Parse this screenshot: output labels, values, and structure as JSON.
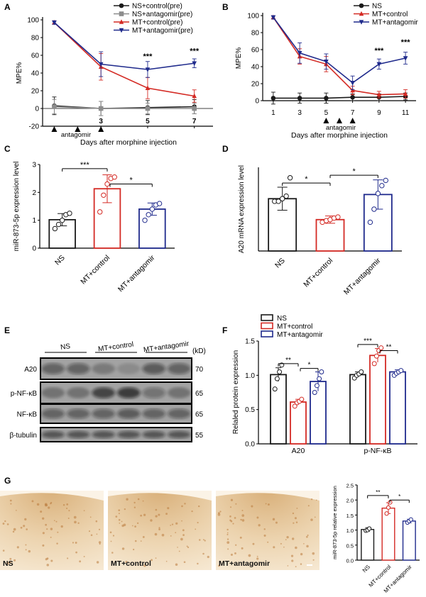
{
  "figure": {
    "panel_labels": [
      "A",
      "B",
      "C",
      "D",
      "E",
      "F",
      "G"
    ],
    "colors": {
      "black": "#1a1a1a",
      "gray": "#8c8c8c",
      "red": "#d42a24",
      "blue": "#1f2a8c",
      "blot_bg": "#a8a8a8",
      "tissue": "#e8c79a"
    }
  },
  "chart_data": [
    {
      "id": "A",
      "type": "line",
      "ylabel": "MPE%",
      "xlabel": "Days after morphine injection",
      "x": [
        1,
        3,
        5,
        7
      ],
      "xticks": [
        3,
        5,
        7
      ],
      "yticks": [
        -20,
        0,
        20,
        40,
        60,
        80,
        100
      ],
      "ylim": [
        -20,
        100
      ],
      "series": [
        {
          "name": "NS+control(pre)",
          "color": "#1a1a1a",
          "marker": "circle",
          "values": [
            3,
            0,
            1,
            2
          ],
          "err": [
            10,
            8,
            8,
            8
          ]
        },
        {
          "name": "NS+antagomir(pre)",
          "color": "#8c8c8c",
          "marker": "square",
          "values": [
            2,
            0,
            0,
            0
          ],
          "err": [
            8,
            8,
            6,
            6
          ]
        },
        {
          "name": "MT+control(pre)",
          "color": "#d42a24",
          "marker": "triangle",
          "values": [
            97,
            47,
            23,
            14
          ],
          "err": [
            2,
            15,
            12,
            7
          ]
        },
        {
          "name": "MT+antagomir(pre)",
          "color": "#1f2a8c",
          "marker": "triangle-down",
          "values": [
            97,
            50,
            44,
            51
          ],
          "err": [
            2,
            14,
            9,
            5
          ]
        }
      ],
      "annotations": [
        "***",
        "***"
      ],
      "arrow_label": "antagomir"
    },
    {
      "id": "B",
      "type": "line",
      "ylabel": "MPE%",
      "xlabel": "Days after morphine injection",
      "x": [
        1,
        3,
        5,
        7,
        9,
        11
      ],
      "xticks": [
        1,
        3,
        5,
        7,
        9,
        11
      ],
      "yticks": [
        0,
        20,
        40,
        60,
        80,
        100
      ],
      "ylim": [
        0,
        100
      ],
      "series": [
        {
          "name": "NS",
          "color": "#1a1a1a",
          "marker": "circle",
          "values": [
            3,
            3,
            3,
            4,
            4,
            5
          ],
          "err": [
            7,
            6,
            6,
            4,
            4,
            4
          ]
        },
        {
          "name": "MT+control",
          "color": "#d42a24",
          "marker": "triangle",
          "values": [
            98,
            52,
            43,
            12,
            7,
            8
          ],
          "err": [
            2,
            9,
            9,
            5,
            4,
            5
          ]
        },
        {
          "name": "MT+antagomir",
          "color": "#1f2a8c",
          "marker": "triangle-down",
          "values": [
            98,
            56,
            46,
            21,
            43,
            50
          ],
          "err": [
            2,
            12,
            9,
            8,
            6,
            7
          ]
        }
      ],
      "annotations": [
        "***",
        "***"
      ],
      "arrow_label": "antagomir"
    },
    {
      "id": "C",
      "type": "bar",
      "ylabel": "miR-873-5p expression level",
      "categories": [
        "NS",
        "MT+control",
        "MT+antagomir"
      ],
      "values": [
        1.02,
        2.13,
        1.4
      ],
      "err": [
        0.22,
        0.5,
        0.22
      ],
      "colors": [
        "#1a1a1a",
        "#d42a24",
        "#1f2a8c"
      ],
      "yticks": [
        0,
        1,
        2,
        3
      ],
      "ylim": [
        0,
        3
      ],
      "points": [
        [
          0.7,
          0.85,
          1.0,
          1.2,
          1.25
        ],
        [
          1.3,
          1.9,
          2.3,
          2.5,
          2.55
        ],
        [
          1.0,
          1.2,
          1.4,
          1.55,
          1.6
        ]
      ],
      "sig": [
        "***",
        "*"
      ]
    },
    {
      "id": "D",
      "type": "bar",
      "ylabel": "A20 mRNA expression level",
      "categories": [
        "NS",
        "MT+control",
        "MT+antagomir"
      ],
      "values": [
        1.0,
        0.6,
        1.08
      ],
      "err": [
        0.22,
        0.07,
        0.28
      ],
      "colors": [
        "#1a1a1a",
        "#d42a24",
        "#1f2a8c"
      ],
      "yticks": [],
      "ylim": [
        0,
        1.6
      ],
      "points": [
        [
          0.95,
          0.95,
          1.0,
          1.05,
          1.4
        ],
        [
          0.55,
          0.58,
          0.6,
          0.63,
          0.65
        ],
        [
          0.55,
          0.8,
          1.1,
          1.25,
          1.35
        ]
      ],
      "sig": [
        "*",
        "*"
      ]
    },
    {
      "id": "F",
      "type": "bar",
      "ylabel": "Relaled protein expression",
      "groups": [
        "A20",
        "p-NF-κB"
      ],
      "legend": [
        "NS",
        "MT+control",
        "MT+antagomir"
      ],
      "colors": [
        "#1a1a1a",
        "#d42a24",
        "#1f2a8c"
      ],
      "values": [
        [
          1.01,
          0.61,
          0.91
        ],
        [
          1.01,
          1.29,
          1.05
        ]
      ],
      "err": [
        [
          0.1,
          0.04,
          0.14
        ],
        [
          0.04,
          0.1,
          0.03
        ]
      ],
      "yticks": [
        0.0,
        0.5,
        1.0,
        1.5
      ],
      "ylim": [
        0,
        1.5
      ],
      "points": [
        [
          [
            0.8,
            0.95,
            1.05,
            1.15
          ],
          [
            0.55,
            0.6,
            0.62,
            0.65
          ],
          [
            0.75,
            0.85,
            0.95,
            1.05
          ]
        ],
        [
          [
            0.96,
            1.0,
            1.02,
            1.05
          ],
          [
            1.17,
            1.28,
            1.36,
            1.4
          ],
          [
            1.0,
            1.03,
            1.05,
            1.07
          ]
        ]
      ],
      "sig": [
        "**",
        "*",
        "***",
        "**"
      ]
    },
    {
      "id": "G",
      "type": "bar",
      "ylabel": "miR-873-5p relative expression",
      "categories": [
        "NS",
        "MT+control",
        "MT+antagomir"
      ],
      "values": [
        1.02,
        1.73,
        1.3
      ],
      "err": [
        0.06,
        0.18,
        0.06
      ],
      "colors": [
        "#1a1a1a",
        "#d42a24",
        "#1f2a8c"
      ],
      "yticks": [
        0.0,
        0.5,
        1.0,
        1.5,
        2.0,
        2.5
      ],
      "ylim": [
        0,
        2.5
      ],
      "points": [
        [
          0.98,
          1.0,
          1.05
        ],
        [
          1.55,
          1.75,
          1.92
        ],
        [
          1.25,
          1.3,
          1.35
        ]
      ],
      "sig": [
        "**",
        "*"
      ]
    }
  ],
  "blot": {
    "groups": [
      "NS",
      "MT+control",
      "MT+antagomir"
    ],
    "unit": "(kD)",
    "rows": [
      {
        "label": "A20",
        "kd": "70"
      },
      {
        "label": "p-NF-κB",
        "kd": "65"
      },
      {
        "label": "NF-κB",
        "kd": "65"
      },
      {
        "label": "β-tubulin",
        "kd": "55"
      }
    ]
  },
  "histology": {
    "labels": [
      "NS",
      "MT+control",
      "MT+antagomir"
    ]
  }
}
